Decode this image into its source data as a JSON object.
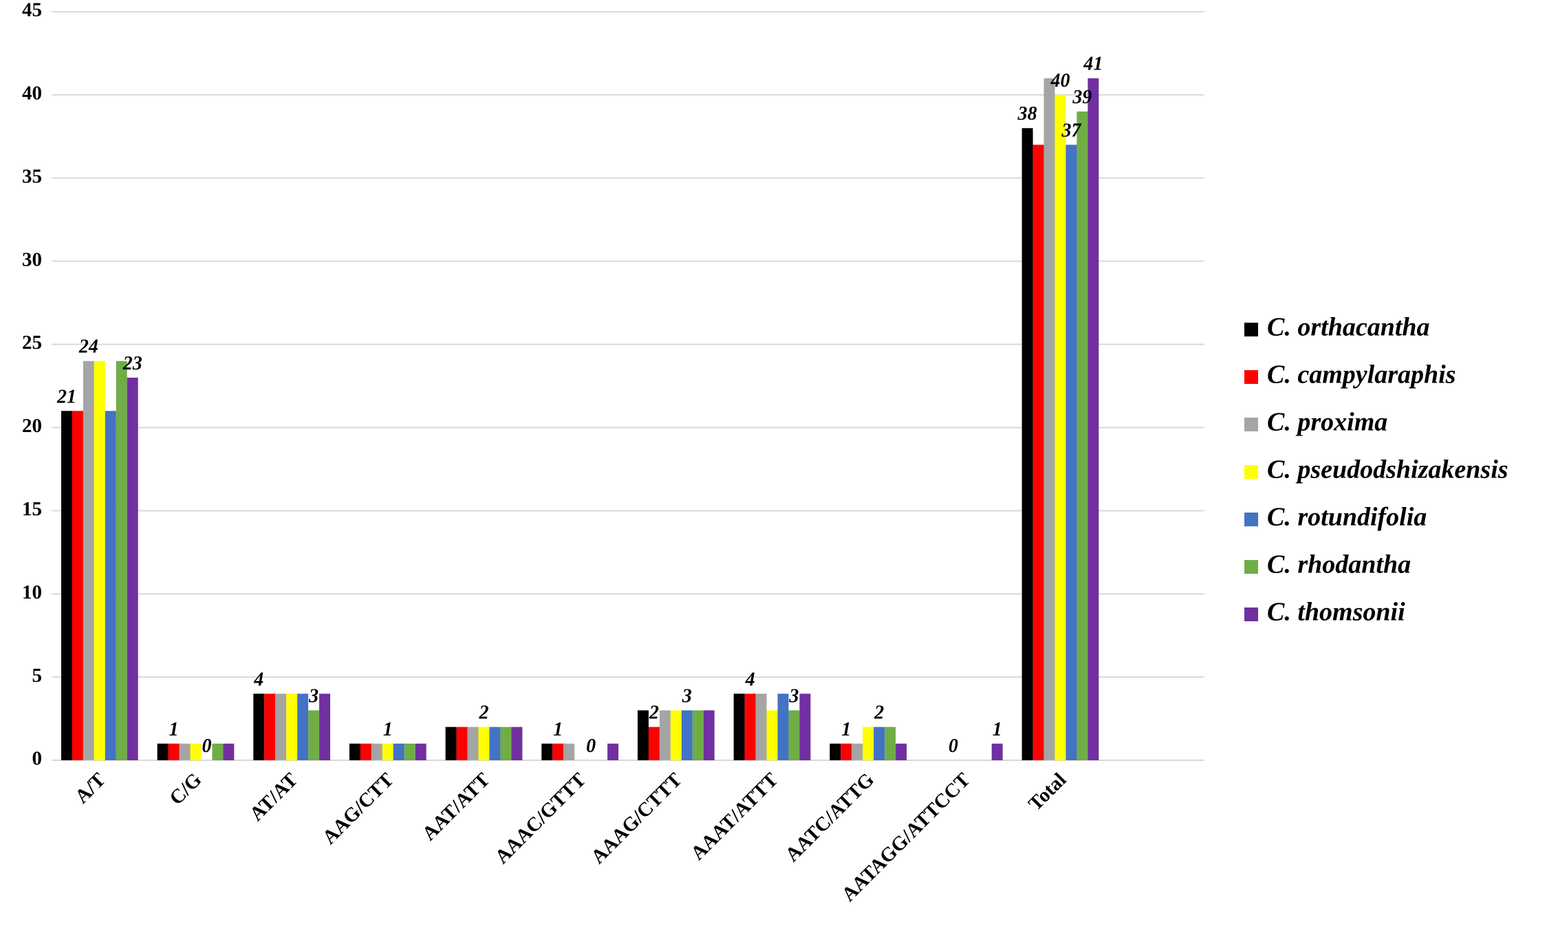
{
  "chart_data": {
    "type": "bar",
    "categories": [
      "A/T",
      "C/G",
      "AT/AT",
      "AAG/CTT",
      "AAT/ATT",
      "AAAC/GTTT",
      "AAAG/CTTT",
      "AAAT/ATTT",
      "AATC/ATTG",
      "AATAGG/ATTCCT",
      "Total"
    ],
    "series": [
      {
        "name": "C. orthacantha",
        "color": "#000000",
        "values": [
          21,
          1,
          4,
          1,
          2,
          1,
          3,
          4,
          1,
          0,
          38
        ],
        "value_labels": [
          21,
          null,
          4,
          null,
          null,
          null,
          null,
          null,
          null,
          null,
          38
        ]
      },
      {
        "name": "C. campylaraphis",
        "color": "#ff0000",
        "values": [
          21,
          1,
          4,
          1,
          2,
          1,
          2,
          4,
          1,
          0,
          37
        ],
        "value_labels": [
          null,
          1,
          null,
          null,
          null,
          1,
          2,
          4,
          1,
          null,
          null
        ]
      },
      {
        "name": "C. proxima",
        "color": "#a5a5a5",
        "values": [
          24,
          1,
          4,
          1,
          2,
          1,
          3,
          4,
          1,
          0,
          41
        ],
        "value_labels": [
          24,
          null,
          null,
          null,
          null,
          null,
          null,
          null,
          null,
          0,
          null
        ]
      },
      {
        "name": "C. pseudodshizakensis",
        "color": "#ffff00",
        "values": [
          24,
          1,
          4,
          1,
          2,
          0,
          3,
          3,
          2,
          0,
          40
        ],
        "value_labels": [
          null,
          null,
          null,
          1,
          2,
          null,
          null,
          null,
          null,
          null,
          40
        ]
      },
      {
        "name": "C. rotundifolia",
        "color": "#4472c4",
        "values": [
          21,
          0,
          4,
          1,
          2,
          0,
          3,
          4,
          2,
          0,
          37
        ],
        "value_labels": [
          null,
          0,
          null,
          null,
          null,
          0,
          3,
          null,
          2,
          null,
          37
        ]
      },
      {
        "name": "C. rhodantha",
        "color": "#70ad47",
        "values": [
          24,
          1,
          3,
          1,
          2,
          0,
          3,
          3,
          2,
          0,
          39
        ],
        "value_labels": [
          null,
          null,
          3,
          null,
          null,
          null,
          null,
          3,
          null,
          null,
          39
        ]
      },
      {
        "name": "C. thomsonii",
        "color": "#7030a0",
        "values": [
          23,
          1,
          4,
          1,
          2,
          1,
          3,
          4,
          1,
          1,
          41
        ],
        "value_labels": [
          23,
          null,
          null,
          null,
          null,
          null,
          null,
          null,
          null,
          1,
          41
        ]
      }
    ],
    "ylim": [
      0,
      45
    ],
    "yticks": [
      0,
      5,
      10,
      15,
      20,
      25,
      30,
      35,
      40,
      45
    ],
    "grid": true,
    "legend": "right"
  }
}
